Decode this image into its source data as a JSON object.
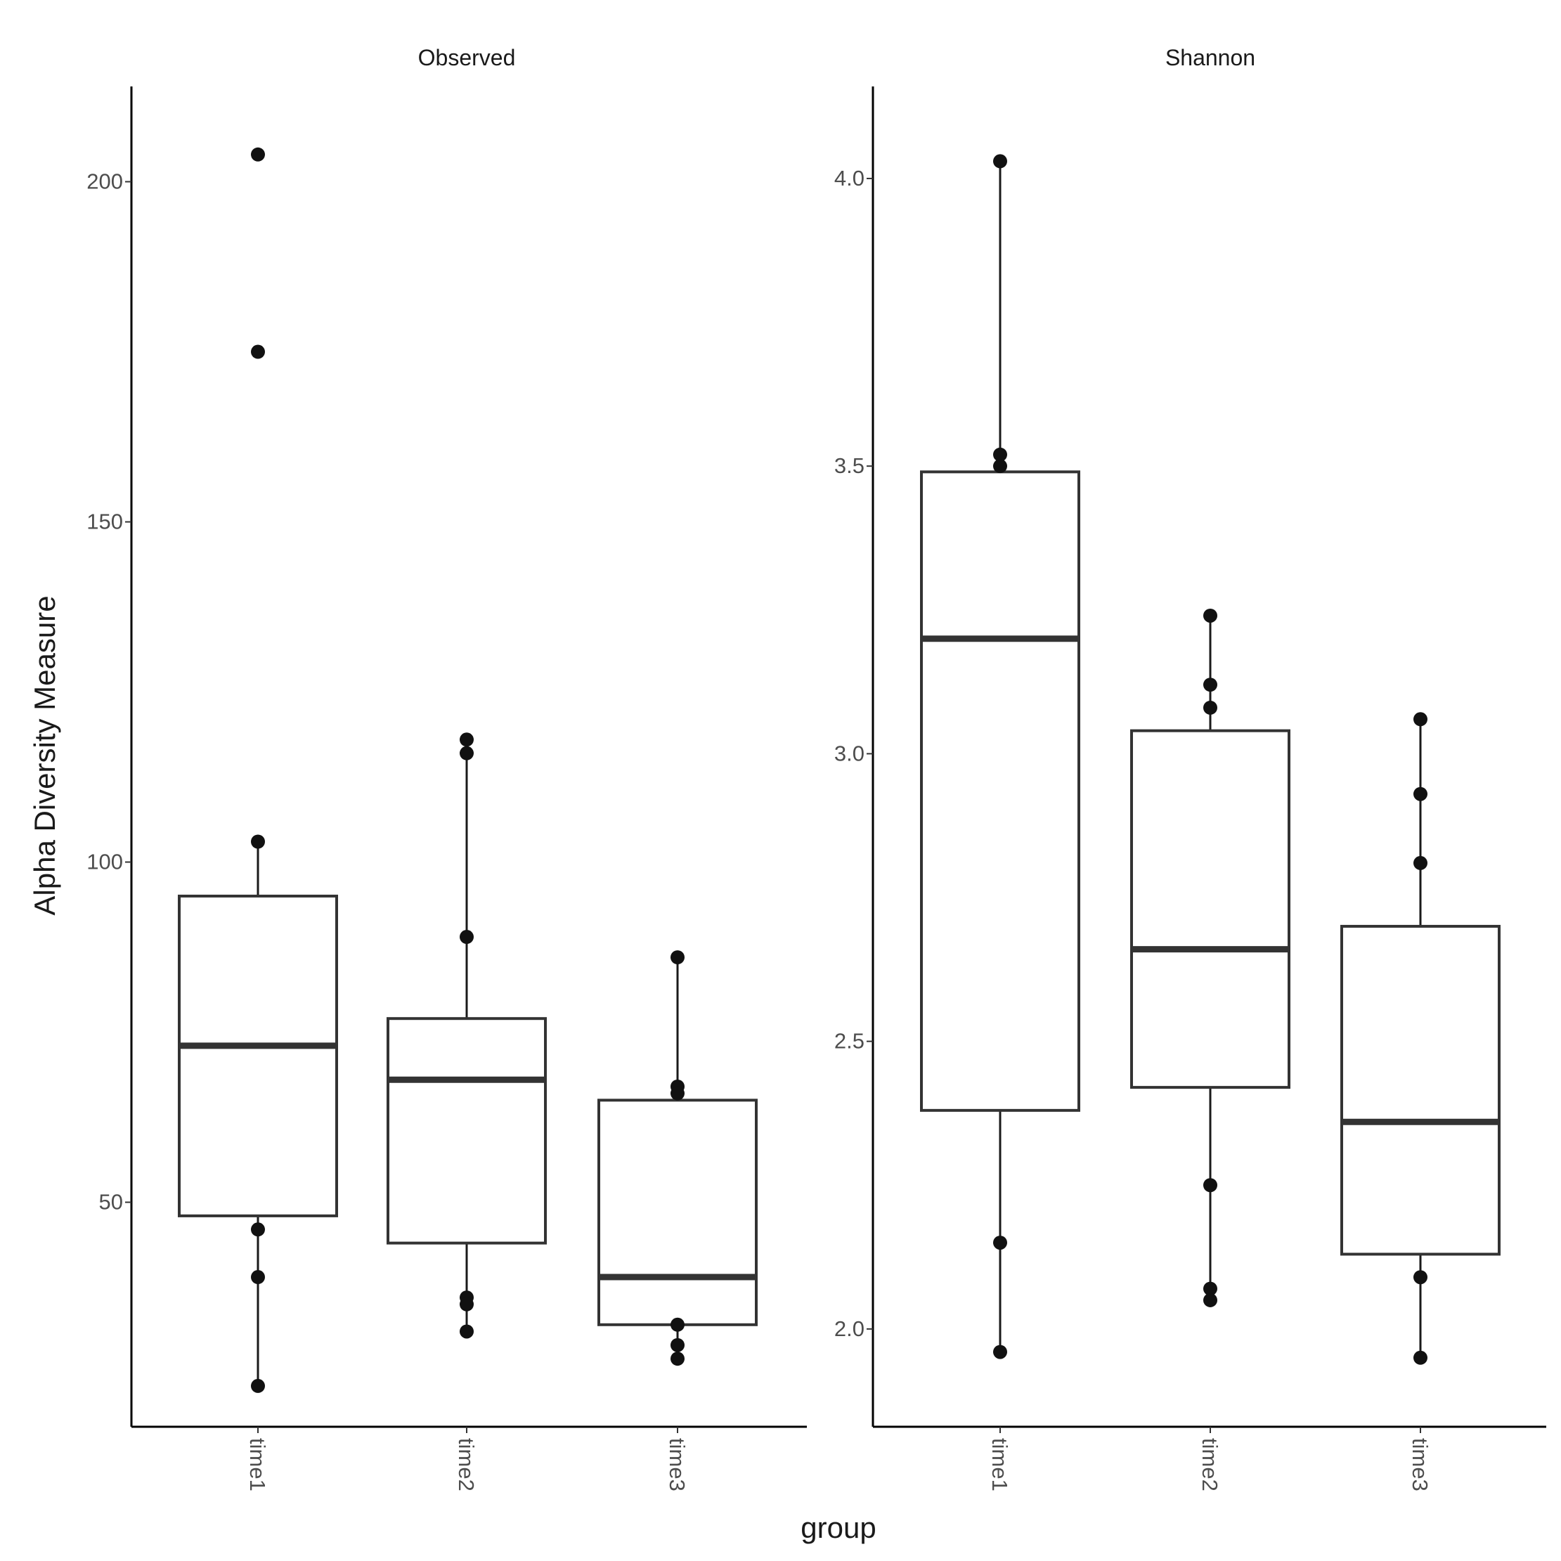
{
  "chart_data": {
    "type": "box",
    "xlabel": "group",
    "ylabel": "Alpha Diversity Measure",
    "categories": [
      "time1",
      "time2",
      "time3"
    ],
    "facets": [
      {
        "title": "Observed",
        "ylim": [
          17,
          214
        ],
        "yticks": [
          50,
          100,
          150,
          200
        ],
        "ytick_labels": [
          "50",
          "100",
          "150",
          "200"
        ],
        "boxes": [
          {
            "group": "time1",
            "whisker_low": 23,
            "q1": 48,
            "median": 73,
            "q3": 95,
            "whisker_high": 103,
            "outliers": [
              204,
              175
            ]
          },
          {
            "group": "time2",
            "whisker_low": 31,
            "q1": 44,
            "median": 68,
            "q3": 77,
            "whisker_high": 118,
            "outliers": []
          },
          {
            "group": "time3",
            "whisker_low": 27,
            "q1": 32,
            "median": 39,
            "q3": 65,
            "whisker_high": 86,
            "outliers": []
          }
        ],
        "points": [
          {
            "group": "time1",
            "values": [
              204,
              175,
              103,
              46,
              39,
              23
            ]
          },
          {
            "group": "time2",
            "values": [
              118,
              116,
              89,
              36,
              35,
              31
            ]
          },
          {
            "group": "time3",
            "values": [
              86,
              67,
              66,
              29,
              27,
              32
            ]
          }
        ]
      },
      {
        "title": "Shannon",
        "ylim": [
          1.83,
          4.16
        ],
        "yticks": [
          2.0,
          2.5,
          3.0,
          3.5,
          4.0
        ],
        "ytick_labels": [
          "2.0",
          "2.5",
          "3.0",
          "3.5",
          "4.0"
        ],
        "boxes": [
          {
            "group": "time1",
            "whisker_low": 1.96,
            "q1": 2.38,
            "median": 3.2,
            "q3": 3.49,
            "whisker_high": 4.03,
            "outliers": []
          },
          {
            "group": "time2",
            "whisker_low": 2.05,
            "q1": 2.42,
            "median": 2.66,
            "q3": 3.04,
            "whisker_high": 3.24,
            "outliers": []
          },
          {
            "group": "time3",
            "whisker_low": 1.95,
            "q1": 2.13,
            "median": 2.36,
            "q3": 2.7,
            "whisker_high": 3.06,
            "outliers": []
          }
        ],
        "points": [
          {
            "group": "time1",
            "values": [
              4.03,
              3.52,
              3.5,
              2.15,
              1.96
            ]
          },
          {
            "group": "time2",
            "values": [
              3.24,
              3.12,
              3.08,
              2.25,
              2.07,
              2.05
            ]
          },
          {
            "group": "time3",
            "values": [
              3.06,
              2.93,
              2.81,
              2.09,
              1.95
            ]
          }
        ]
      }
    ]
  }
}
